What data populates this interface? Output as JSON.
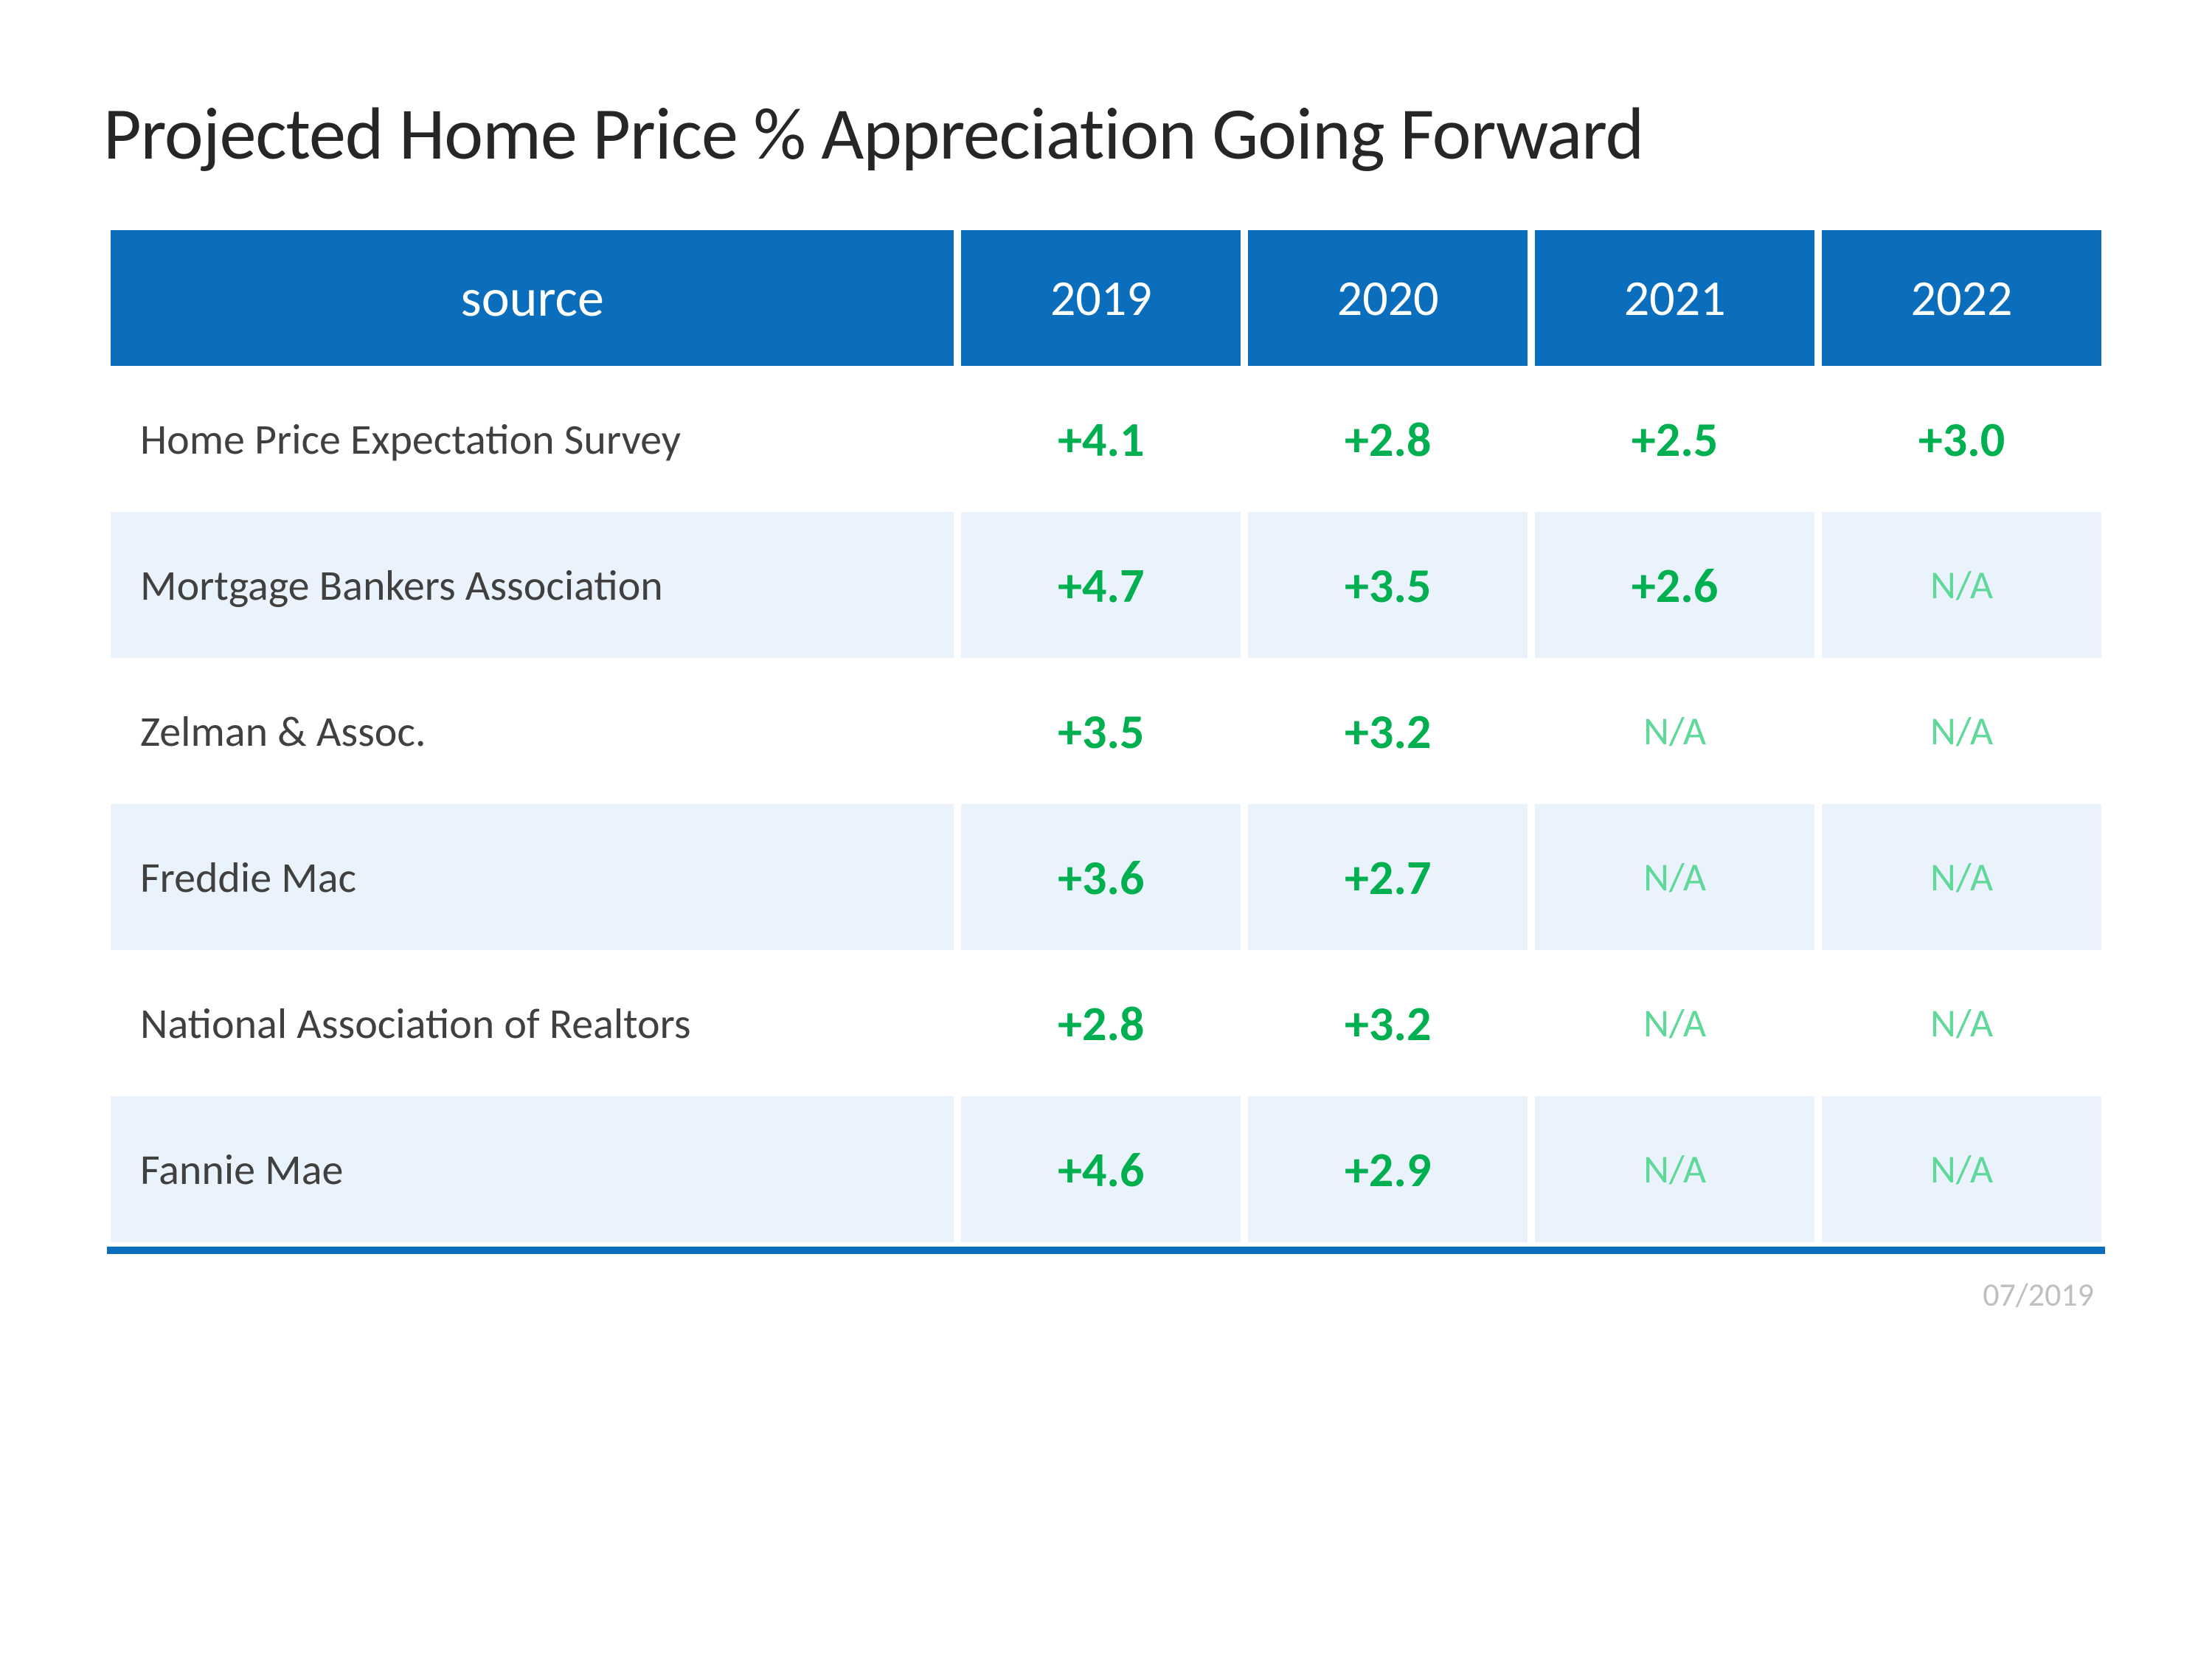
{
  "title": "Projected Home Price % Appreciation Going Forward",
  "footer_date": "07/2019",
  "table": {
    "type": "table",
    "header_bg": "#0a6ebd",
    "header_fg": "#ffffff",
    "row_bg_odd": "#ffffff",
    "row_bg_even": "#eaf3fb",
    "value_color": "#00b050",
    "na_color": "#5fd89a",
    "bottom_rule_color": "#0a6ebd",
    "source_header": "source",
    "columns": [
      "2019",
      "2020",
      "2021",
      "2022"
    ],
    "rows": [
      {
        "source": "Home Price Expectation Survey",
        "values": [
          "+4.1",
          "+2.8",
          "+2.5",
          "+3.0"
        ]
      },
      {
        "source": "Mortgage Bankers Association",
        "values": [
          "+4.7",
          "+3.5",
          "+2.6",
          "N/A"
        ]
      },
      {
        "source": "Zelman & Assoc.",
        "values": [
          "+3.5",
          "+3.2",
          "N/A",
          "N/A"
        ]
      },
      {
        "source": "Freddie Mac",
        "values": [
          "+3.6",
          "+2.7",
          "N/A",
          "N/A"
        ]
      },
      {
        "source": "National Association of Realtors",
        "values": [
          "+2.8",
          "+3.2",
          "N/A",
          "N/A"
        ]
      },
      {
        "source": "Fannie Mae",
        "values": [
          "+4.6",
          "+2.9",
          "N/A",
          "N/A"
        ]
      }
    ],
    "title_fontsize": 100,
    "header_fontsize": 68,
    "source_fontsize": 58,
    "value_fontsize": 66,
    "na_fontsize": 54,
    "footer_fontsize": 44
  }
}
